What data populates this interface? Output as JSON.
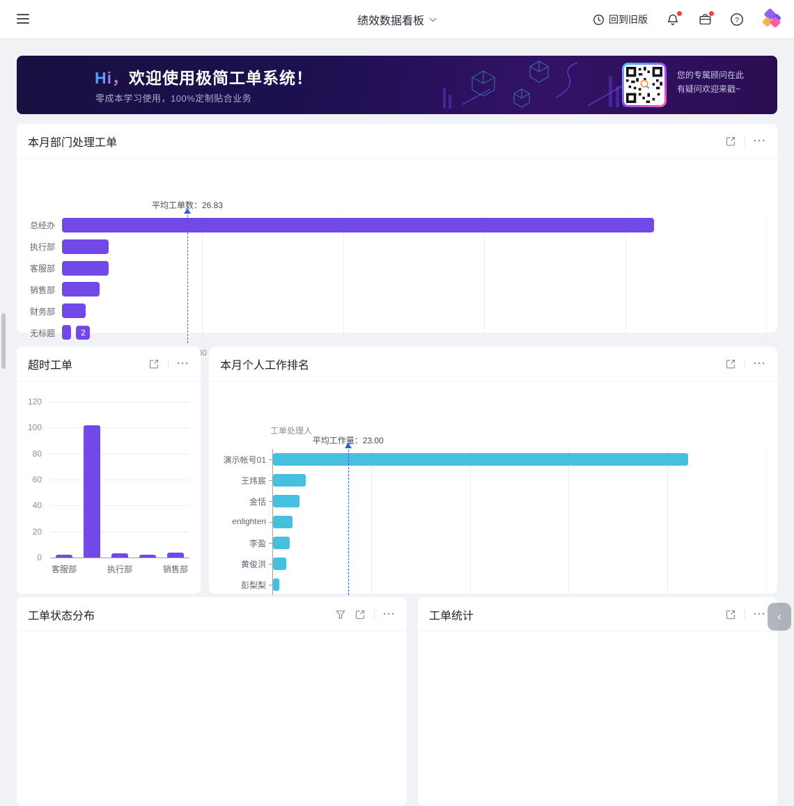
{
  "navbar": {
    "title": "绩效数据看板",
    "legacy_label": "回到旧版"
  },
  "icons": {
    "more": "···",
    "collapse": "‹",
    "help": "?"
  },
  "banner": {
    "greeting": "Hi，",
    "title": "欢迎使用极简工单系统！",
    "subtitle": "零成本学习使用，100%定制贴合业务",
    "qr_line1": "您的专属顾问在此",
    "qr_line2": "有疑问欢迎来戳~"
  },
  "cards": {
    "dept": {
      "title": "本月部门处理工单"
    },
    "overtime": {
      "title": "超时工单"
    },
    "personal": {
      "title": "本月个人工作排名"
    },
    "status": {
      "title": "工单状态分布"
    },
    "stats": {
      "title": "工单统计"
    }
  },
  "colors": {
    "purple_bar": "#7249e6",
    "cyan_bar": "#47c0e0",
    "average_line": "#2e5bd8",
    "red_dot": "#f53f3f"
  },
  "chart_data": [
    {
      "id": "dept",
      "type": "bar",
      "orientation": "horizontal",
      "title": "本月部门处理工单",
      "categories": [
        "总经办",
        "执行部",
        "客服部",
        "销售部",
        "财务部",
        "无标题"
      ],
      "values": [
        126,
        10,
        10,
        8,
        5,
        2
      ],
      "xlim": [
        0,
        150
      ],
      "xticks": [
        0,
        30,
        60,
        90,
        120,
        150
      ],
      "average": 26.83,
      "average_label": "平均工单数：26.83",
      "bar_color": "#7249e6",
      "grid": true,
      "data_label": {
        "category": "无标题",
        "value": 2
      }
    },
    {
      "id": "overtime",
      "type": "bar",
      "orientation": "vertical",
      "title": "超时工单",
      "categories": [
        "客服部",
        "",
        "执行部",
        "",
        "销售部"
      ],
      "values": [
        2,
        102,
        3,
        2,
        4
      ],
      "ylim": [
        0,
        120
      ],
      "yticks": [
        0,
        20,
        40,
        60,
        80,
        100,
        120
      ],
      "bar_color": "#7249e6",
      "grid": true
    },
    {
      "id": "personal",
      "type": "bar",
      "orientation": "horizontal",
      "title": "本月个人工作排名",
      "axis_name": "工单处理人",
      "categories": [
        "演示帐号01",
        "王炜宸",
        "金恬",
        "enlighten",
        "李盈",
        "黄俊洪",
        "彭梨梨"
      ],
      "values": [
        126,
        10,
        8,
        6,
        5,
        4,
        2
      ],
      "xlim": [
        0,
        150
      ],
      "xticks": [
        0,
        30,
        60,
        90,
        120,
        150
      ],
      "average": 23,
      "average_label": "平均工作量：23.00",
      "bar_color": "#47c0e0",
      "grid": true
    }
  ]
}
